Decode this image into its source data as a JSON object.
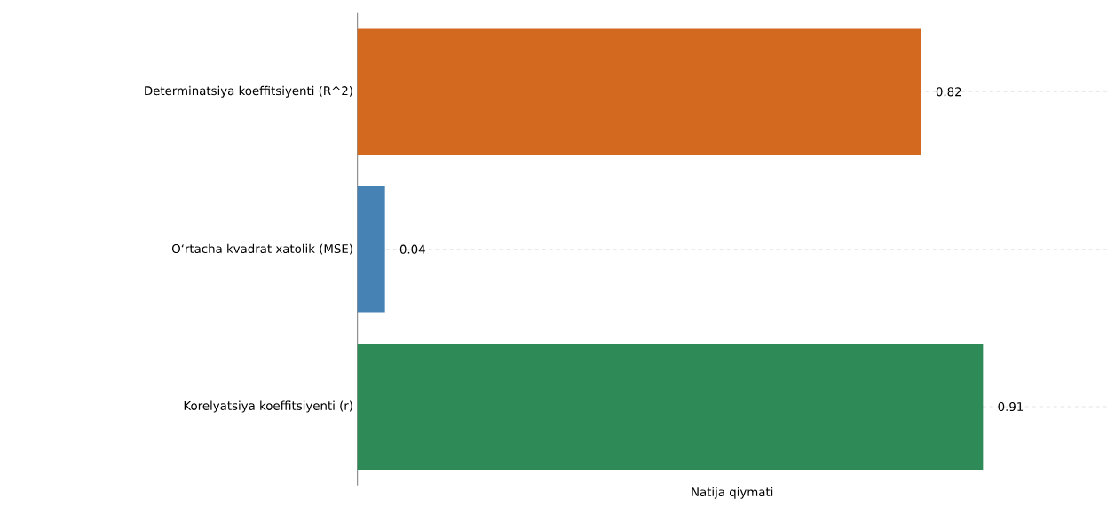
{
  "chart_data": {
    "type": "bar",
    "orientation": "horizontal",
    "categories": [
      "Determinatsiya koeffitsiyenti (R^2)",
      "O‘rtacha kvadrat xatolik (MSE)",
      "Korelyatsiya koeffitsiyenti (r)"
    ],
    "values": [
      0.82,
      0.04,
      0.91
    ],
    "colors": [
      "#d2691e",
      "#4682b4",
      "#2e8b57"
    ],
    "xlabel": "Natija qiymati",
    "xlim": [
      0,
      1.09
    ],
    "data_labels": true,
    "grid": "y"
  }
}
